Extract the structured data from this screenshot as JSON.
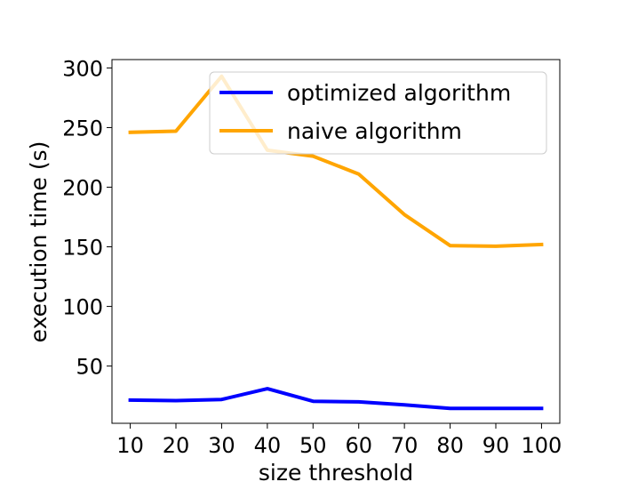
{
  "chart_data": {
    "type": "line",
    "xlabel": "size threshold",
    "ylabel": "execution time (s)",
    "x": [
      10,
      20,
      30,
      40,
      50,
      60,
      70,
      80,
      90,
      100
    ],
    "xlim": [
      6,
      104
    ],
    "ylim": [
      2,
      307
    ],
    "xticks": [
      10,
      20,
      30,
      40,
      50,
      60,
      70,
      80,
      90,
      100
    ],
    "yticks": [
      50,
      100,
      150,
      200,
      250,
      300
    ],
    "grid": false,
    "legend_position": "upper-right",
    "series": [
      {
        "name": "optimized algorithm",
        "color": "#0000ff",
        "values": [
          21.5,
          21,
          22,
          31,
          20.5,
          20,
          17.5,
          14.5,
          14.5,
          14.5
        ]
      },
      {
        "name": "naive algorithm",
        "color": "#ffa500",
        "values": [
          246,
          247,
          293,
          231,
          226,
          211,
          177,
          151,
          150.5,
          152
        ]
      }
    ]
  }
}
